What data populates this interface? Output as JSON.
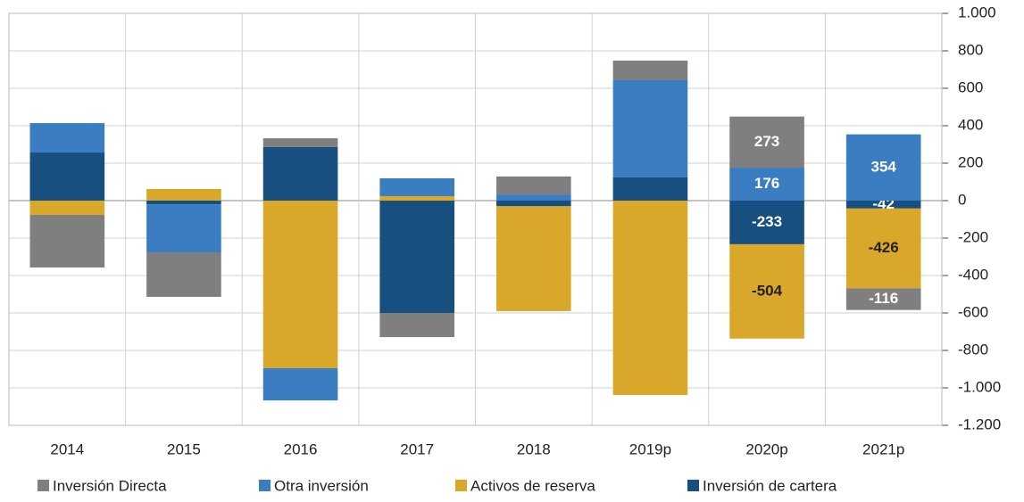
{
  "chart_data": {
    "type": "stacked_bar",
    "categories": [
      "2014",
      "2015",
      "2016",
      "2017",
      "2018",
      "2019p",
      "2020p",
      "2021p"
    ],
    "series": [
      {
        "name": "Inversión Directa",
        "color": "#7f7f7f",
        "values": [
          -281,
          -238,
          47,
          -129,
          96,
          105,
          273,
          -116
        ],
        "value_labels": [
          null,
          null,
          null,
          null,
          null,
          null,
          "273",
          "-116"
        ]
      },
      {
        "name": "Otra inversión",
        "color": "#3a7dc1",
        "values": [
          157,
          -256,
          -172,
          95,
          33,
          519,
          176,
          354
        ],
        "value_labels": [
          null,
          null,
          null,
          null,
          null,
          null,
          "176",
          "354"
        ]
      },
      {
        "name": "Activos de reserva",
        "color": "#d9a72a",
        "values": [
          -76,
          62,
          -895,
          24,
          -560,
          -1038,
          -504,
          -426
        ],
        "value_labels": [
          null,
          null,
          null,
          null,
          null,
          null,
          "-504",
          "-426"
        ]
      },
      {
        "name": "Inversión de cartera",
        "color": "#174f80",
        "values": [
          257,
          -20,
          286,
          -600,
          -30,
          124,
          -233,
          -42
        ],
        "value_labels": [
          null,
          null,
          null,
          null,
          null,
          null,
          "-233",
          "-42"
        ]
      }
    ],
    "stack_order": [
      "Inversión de cartera",
      "Activos de reserva",
      "Otra inversión",
      "Inversión Directa"
    ],
    "ylim": [
      -1200,
      1000
    ],
    "yticks": [
      {
        "value": -1200,
        "label": "-1.200"
      },
      {
        "value": -1000,
        "label": "-1.000"
      },
      -800,
      -600,
      -400,
      -200,
      0,
      200,
      400,
      600,
      800,
      {
        "value": 1000,
        "label": "1.000"
      }
    ],
    "grid": true,
    "y_axis_side": "right",
    "legend": "bottom"
  }
}
